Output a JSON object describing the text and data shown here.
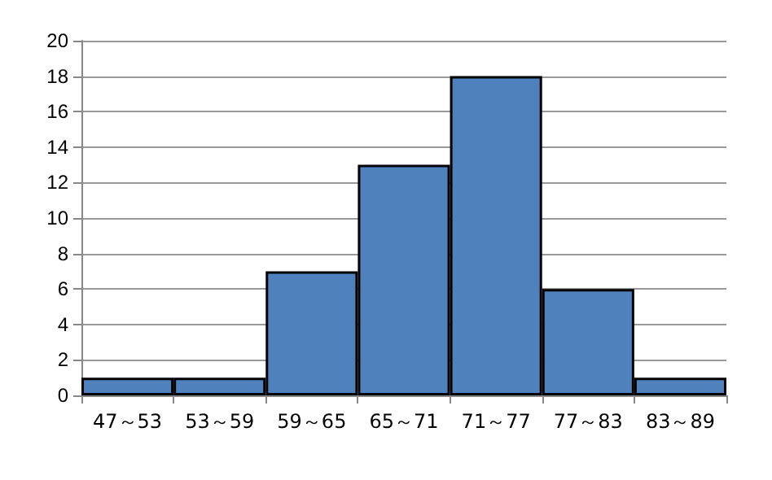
{
  "chart_data": {
    "type": "bar",
    "categories": [
      "47～53",
      "53～59",
      "59～65",
      "65～71",
      "71～77",
      "77～83",
      "83～89"
    ],
    "values": [
      1,
      1,
      7,
      13,
      18,
      6,
      1
    ],
    "color": "#4f81bd",
    "ylim": [
      0,
      20
    ],
    "yticks": [
      0,
      2,
      4,
      6,
      8,
      10,
      12,
      14,
      16,
      18,
      20
    ],
    "grid": "y"
  }
}
